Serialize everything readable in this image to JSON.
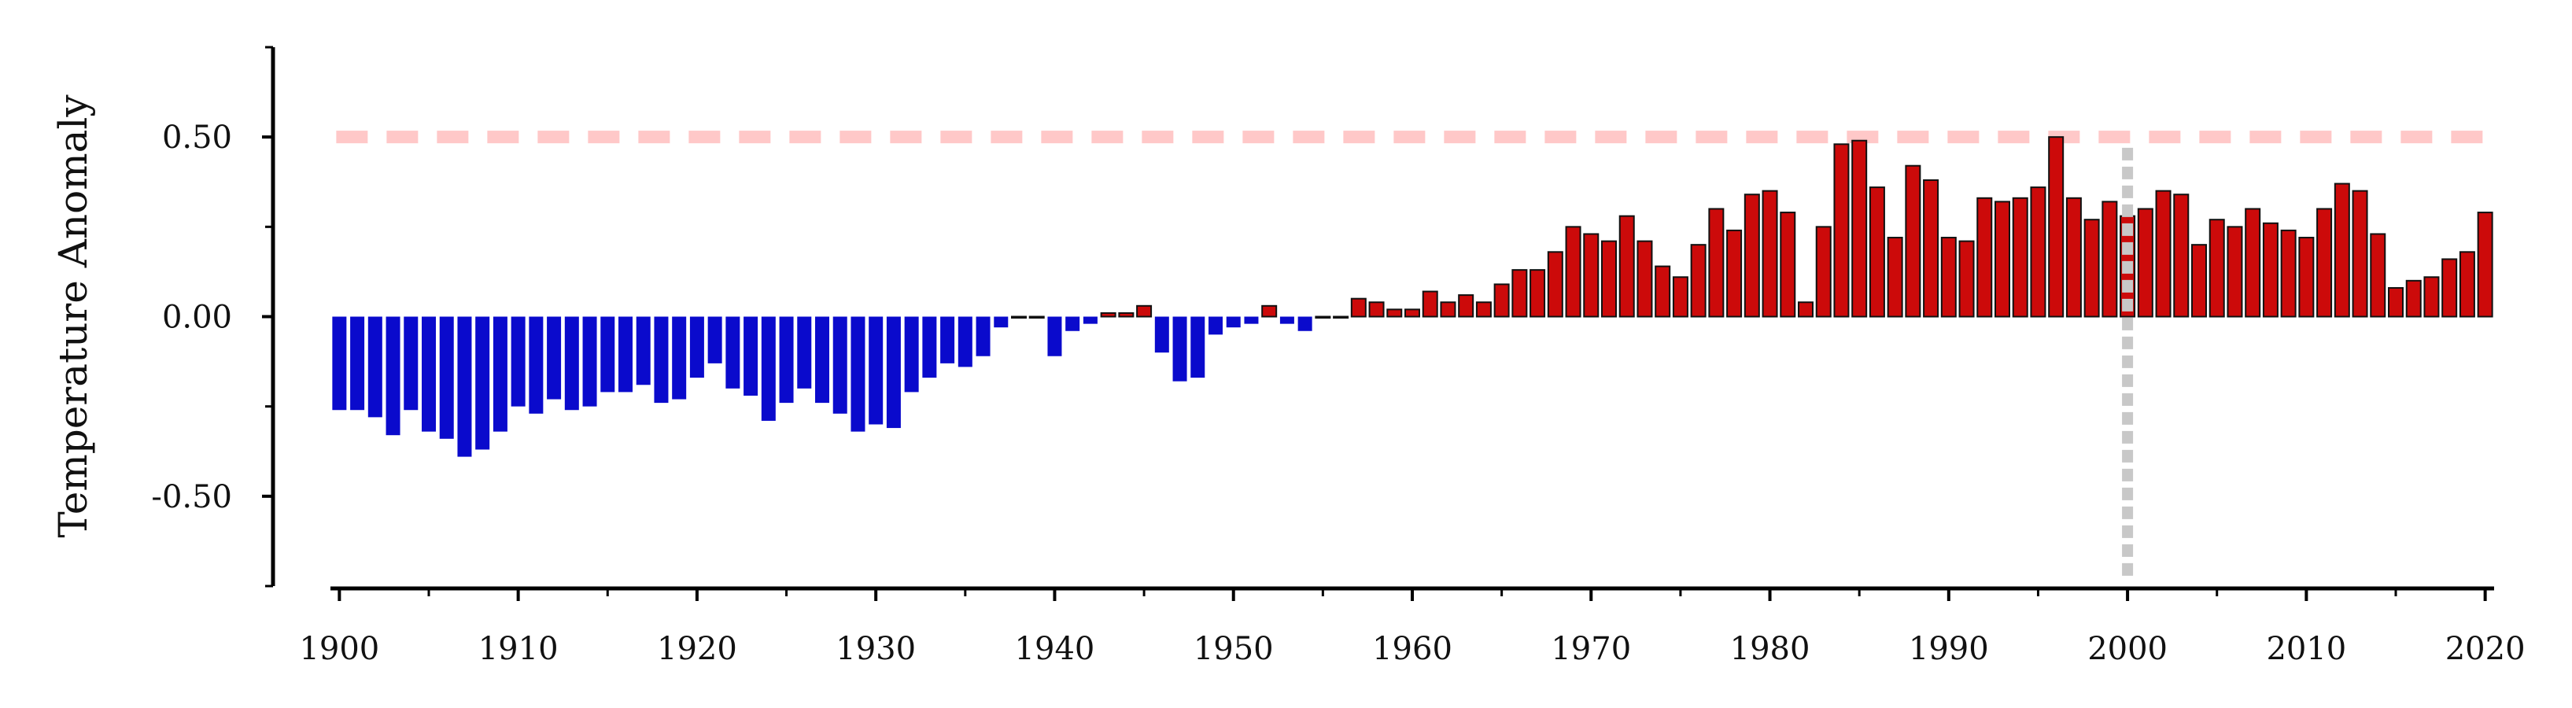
{
  "chart_data": {
    "type": "bar",
    "title": "",
    "xlabel": "",
    "ylabel": "Temperature Anomaly",
    "xlim": [
      1899.5,
      2020.5
    ],
    "ylim": [
      -0.75,
      0.75
    ],
    "x_ticks": [
      1900,
      1910,
      1920,
      1930,
      1940,
      1950,
      1960,
      1970,
      1980,
      1990,
      2000,
      2010,
      2020
    ],
    "x_tick_labels": [
      "1900",
      "1910",
      "1920",
      "1930",
      "1940",
      "1950",
      "1960",
      "1970",
      "1980",
      "1990",
      "2000",
      "2010",
      "2020"
    ],
    "y_ticks": [
      -0.5,
      0.0,
      0.5
    ],
    "y_tick_labels": [
      "-0.50",
      "0.00",
      "0.50"
    ],
    "grid": false,
    "legend": "none",
    "colors": {
      "negative": "#0a0acc",
      "positive": "#cc0a0a",
      "bar_edge": "#111111",
      "threshold_line": "#ffc8c8",
      "marker_line": "#c8c8c8",
      "axis": "#000000"
    },
    "threshold_line": {
      "y": 0.5,
      "x_range": [
        1900,
        2020
      ],
      "style": "dashed"
    },
    "marker_line": {
      "x": 2000,
      "style": "dotted"
    },
    "x": [
      1900,
      1901,
      1902,
      1903,
      1904,
      1905,
      1906,
      1907,
      1908,
      1909,
      1910,
      1911,
      1912,
      1913,
      1914,
      1915,
      1916,
      1917,
      1918,
      1919,
      1920,
      1921,
      1922,
      1923,
      1924,
      1925,
      1926,
      1927,
      1928,
      1929,
      1930,
      1931,
      1932,
      1933,
      1934,
      1935,
      1936,
      1937,
      1938,
      1939,
      1940,
      1941,
      1942,
      1943,
      1944,
      1945,
      1946,
      1947,
      1948,
      1949,
      1950,
      1951,
      1952,
      1953,
      1954,
      1955,
      1956,
      1957,
      1958,
      1959,
      1960,
      1961,
      1962,
      1963,
      1964,
      1965,
      1966,
      1967,
      1968,
      1969,
      1970,
      1971,
      1972,
      1973,
      1974,
      1975,
      1976,
      1977,
      1978,
      1979,
      1980,
      1981,
      1982,
      1983,
      1984,
      1985,
      1986,
      1987,
      1988,
      1989,
      1990,
      1991,
      1992,
      1993,
      1994,
      1995,
      1996,
      1997,
      1998,
      1999,
      2000,
      2001,
      2002,
      2003,
      2004,
      2005,
      2006,
      2007,
      2008,
      2009,
      2010,
      2011,
      2012,
      2013,
      2014,
      2015,
      2016,
      2017,
      2018,
      2019,
      2020
    ],
    "values": [
      -0.26,
      -0.26,
      -0.28,
      -0.33,
      -0.26,
      -0.32,
      -0.34,
      -0.39,
      -0.37,
      -0.32,
      -0.25,
      -0.27,
      -0.23,
      -0.26,
      -0.25,
      -0.21,
      -0.21,
      -0.19,
      -0.24,
      -0.23,
      -0.17,
      -0.13,
      -0.2,
      -0.22,
      -0.29,
      -0.24,
      -0.2,
      -0.24,
      -0.27,
      -0.32,
      -0.3,
      -0.31,
      -0.21,
      -0.17,
      -0.13,
      -0.14,
      -0.11,
      -0.03,
      0.0,
      0.0,
      -0.11,
      -0.04,
      -0.02,
      0.01,
      0.01,
      0.03,
      -0.1,
      -0.18,
      -0.17,
      -0.05,
      -0.03,
      -0.02,
      0.03,
      -0.02,
      -0.04,
      0.0,
      0.0,
      0.05,
      0.04,
      0.02,
      0.02,
      0.07,
      0.04,
      0.06,
      0.04,
      0.09,
      0.13,
      0.13,
      0.18,
      0.25,
      0.23,
      0.21,
      0.28,
      0.21,
      0.14,
      0.11,
      0.2,
      0.3,
      0.24,
      0.34,
      0.35,
      0.29,
      0.04,
      0.25,
      0.48,
      0.49,
      0.36,
      0.22,
      0.42,
      0.38,
      0.22,
      0.21,
      0.33,
      0.32,
      0.33,
      0.36,
      0.5,
      0.33,
      0.27,
      0.32,
      0.28,
      0.3,
      0.35,
      0.34,
      0.2,
      0.27,
      0.25,
      0.3,
      0.26,
      0.24,
      0.22,
      0.3,
      0.37,
      0.35,
      0.23,
      0.08,
      0.1,
      0.11,
      0.16,
      0.18,
      0.29
    ]
  }
}
